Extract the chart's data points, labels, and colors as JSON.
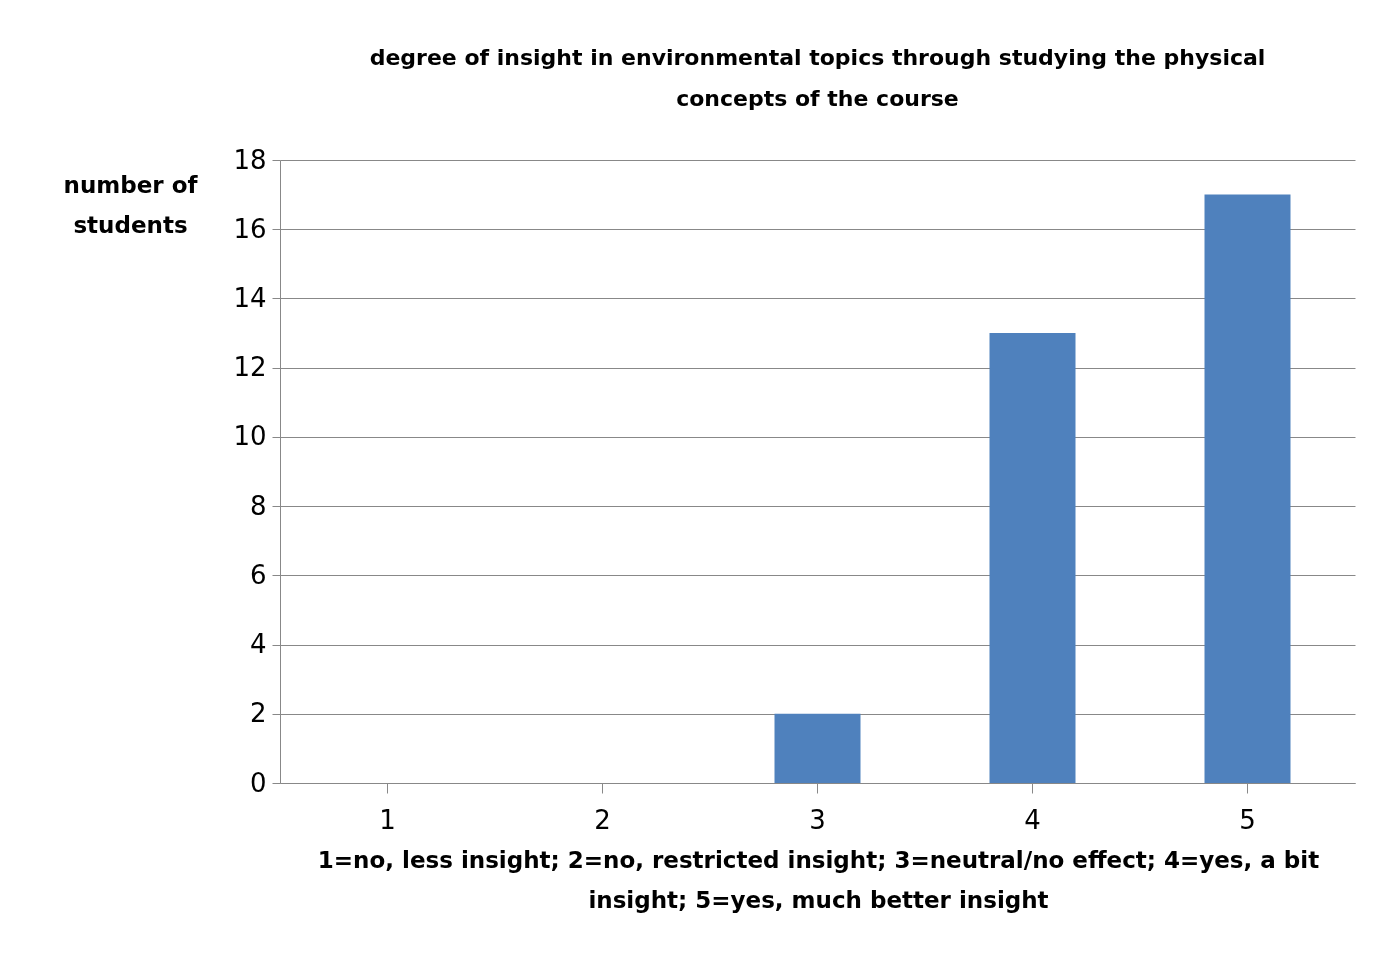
{
  "chart_data": {
    "type": "bar",
    "title": "degree of insight in environmental topics through studying the physical concepts of the course",
    "ylabel": "number of students",
    "xlabel": "1=no, less insight; 2=no, restricted insight; 3=neutral/no effect; 4=yes, a bit insight; 5=yes, much better insight",
    "categories": [
      "1",
      "2",
      "3",
      "4",
      "5"
    ],
    "values": [
      0,
      0,
      2,
      13,
      17
    ],
    "color": "#4f81bd",
    "ylim": [
      0,
      18
    ],
    "yticks": [
      0,
      2,
      4,
      6,
      8,
      10,
      12,
      14,
      16,
      18
    ],
    "grid": "y"
  }
}
